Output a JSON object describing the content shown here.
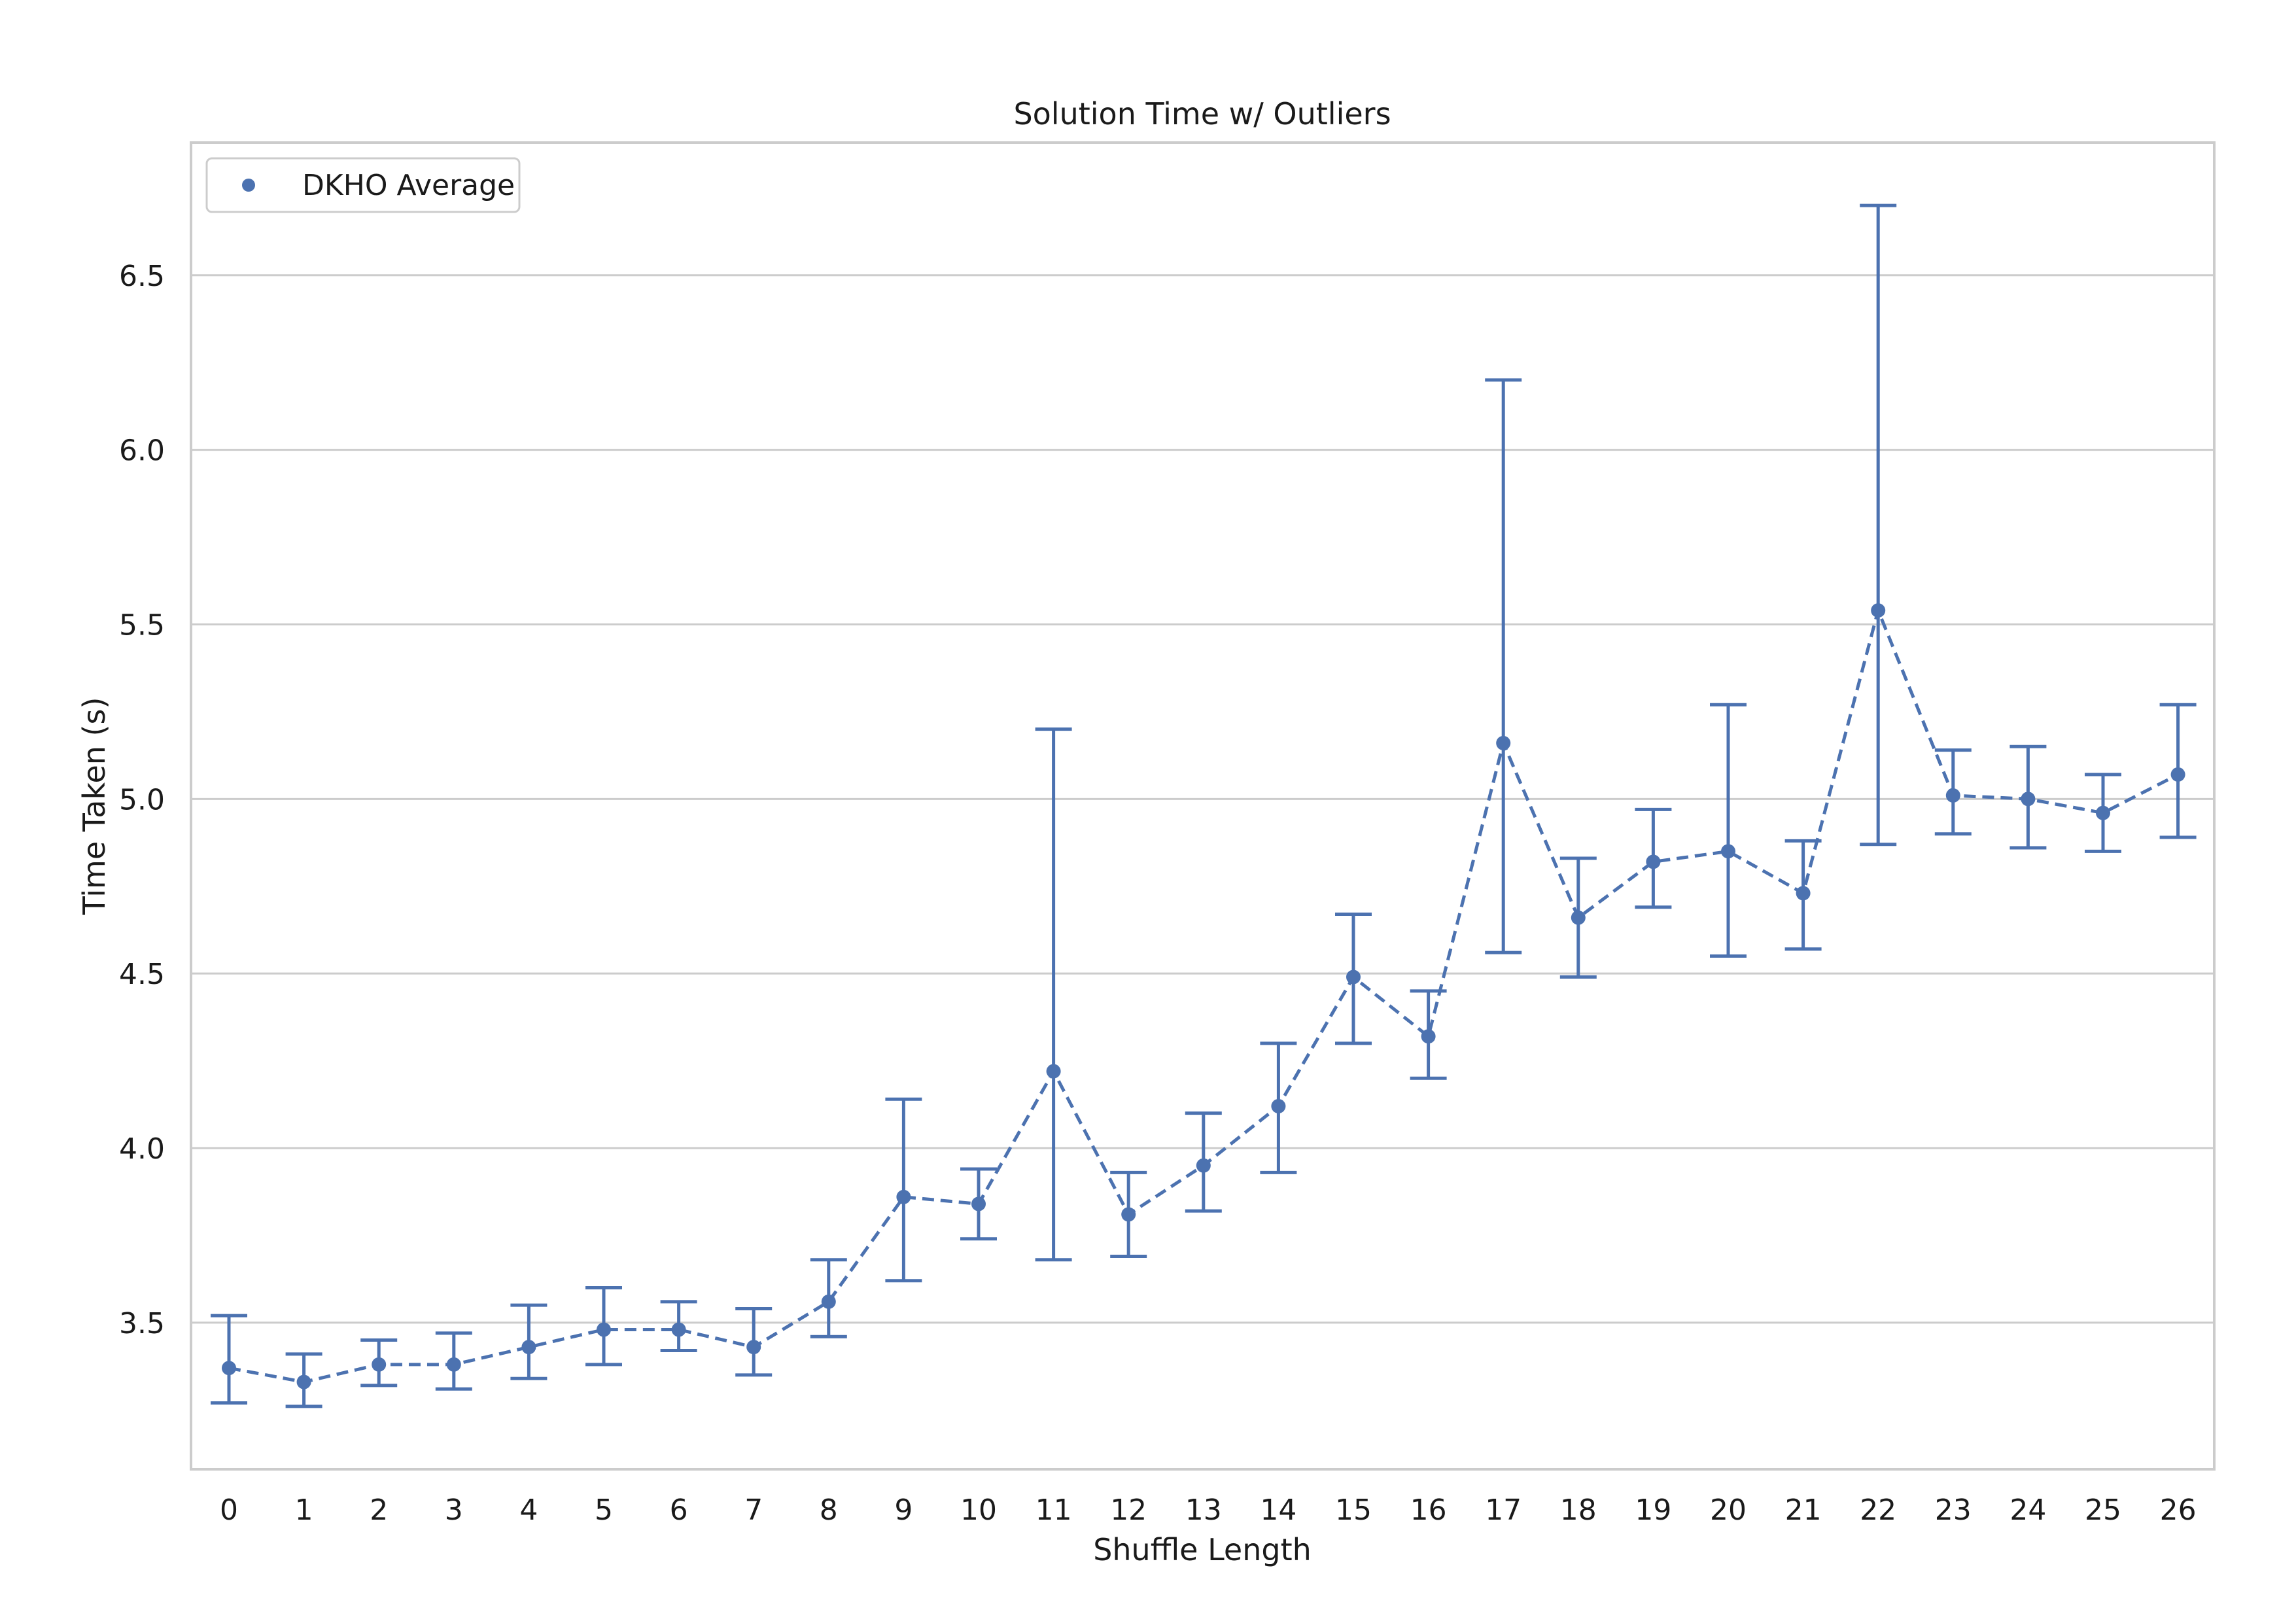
{
  "chart_data": {
    "type": "scatter",
    "title": "Solution Time w/ Outliers",
    "xlabel": "Shuffle Length",
    "ylabel": "Time Taken (s)",
    "categories": [
      "0",
      "1",
      "2",
      "3",
      "4",
      "5",
      "6",
      "7",
      "8",
      "9",
      "10",
      "11",
      "12",
      "13",
      "14",
      "15",
      "16",
      "17",
      "18",
      "19",
      "20",
      "21",
      "22",
      "23",
      "24",
      "25",
      "26"
    ],
    "y_ticks": [
      "3.5",
      "4.0",
      "4.5",
      "5.0",
      "5.5",
      "6.0",
      "6.5"
    ],
    "ylim": [
      3.08,
      6.88
    ],
    "grid": "horizontal",
    "legend": {
      "position": "top-left",
      "entries": [
        "DKHO Average"
      ]
    },
    "line_style": "dashed",
    "colors": {
      "series": "#4c72b0",
      "grid": "#cccccc",
      "frame": "#cccccc"
    },
    "series": [
      {
        "name": "DKHO Average",
        "values": [
          3.37,
          3.33,
          3.38,
          3.38,
          3.43,
          3.48,
          3.48,
          3.43,
          3.56,
          3.86,
          3.84,
          4.22,
          3.81,
          3.95,
          4.12,
          4.49,
          4.32,
          5.16,
          4.66,
          4.82,
          4.85,
          4.73,
          5.54,
          5.01,
          5.0,
          4.96,
          5.07
        ],
        "error_low": [
          3.27,
          3.26,
          3.32,
          3.31,
          3.34,
          3.38,
          3.42,
          3.35,
          3.46,
          3.62,
          3.74,
          3.68,
          3.69,
          3.82,
          3.93,
          4.3,
          4.2,
          4.56,
          4.49,
          4.69,
          4.55,
          4.57,
          4.87,
          4.9,
          4.86,
          4.85,
          4.89
        ],
        "error_high": [
          3.52,
          3.41,
          3.45,
          3.47,
          3.55,
          3.6,
          3.56,
          3.54,
          3.68,
          4.14,
          3.94,
          5.2,
          3.93,
          4.1,
          4.3,
          4.67,
          4.45,
          6.2,
          4.83,
          4.97,
          5.27,
          4.88,
          6.7,
          5.14,
          5.15,
          5.07,
          5.27
        ]
      }
    ]
  }
}
